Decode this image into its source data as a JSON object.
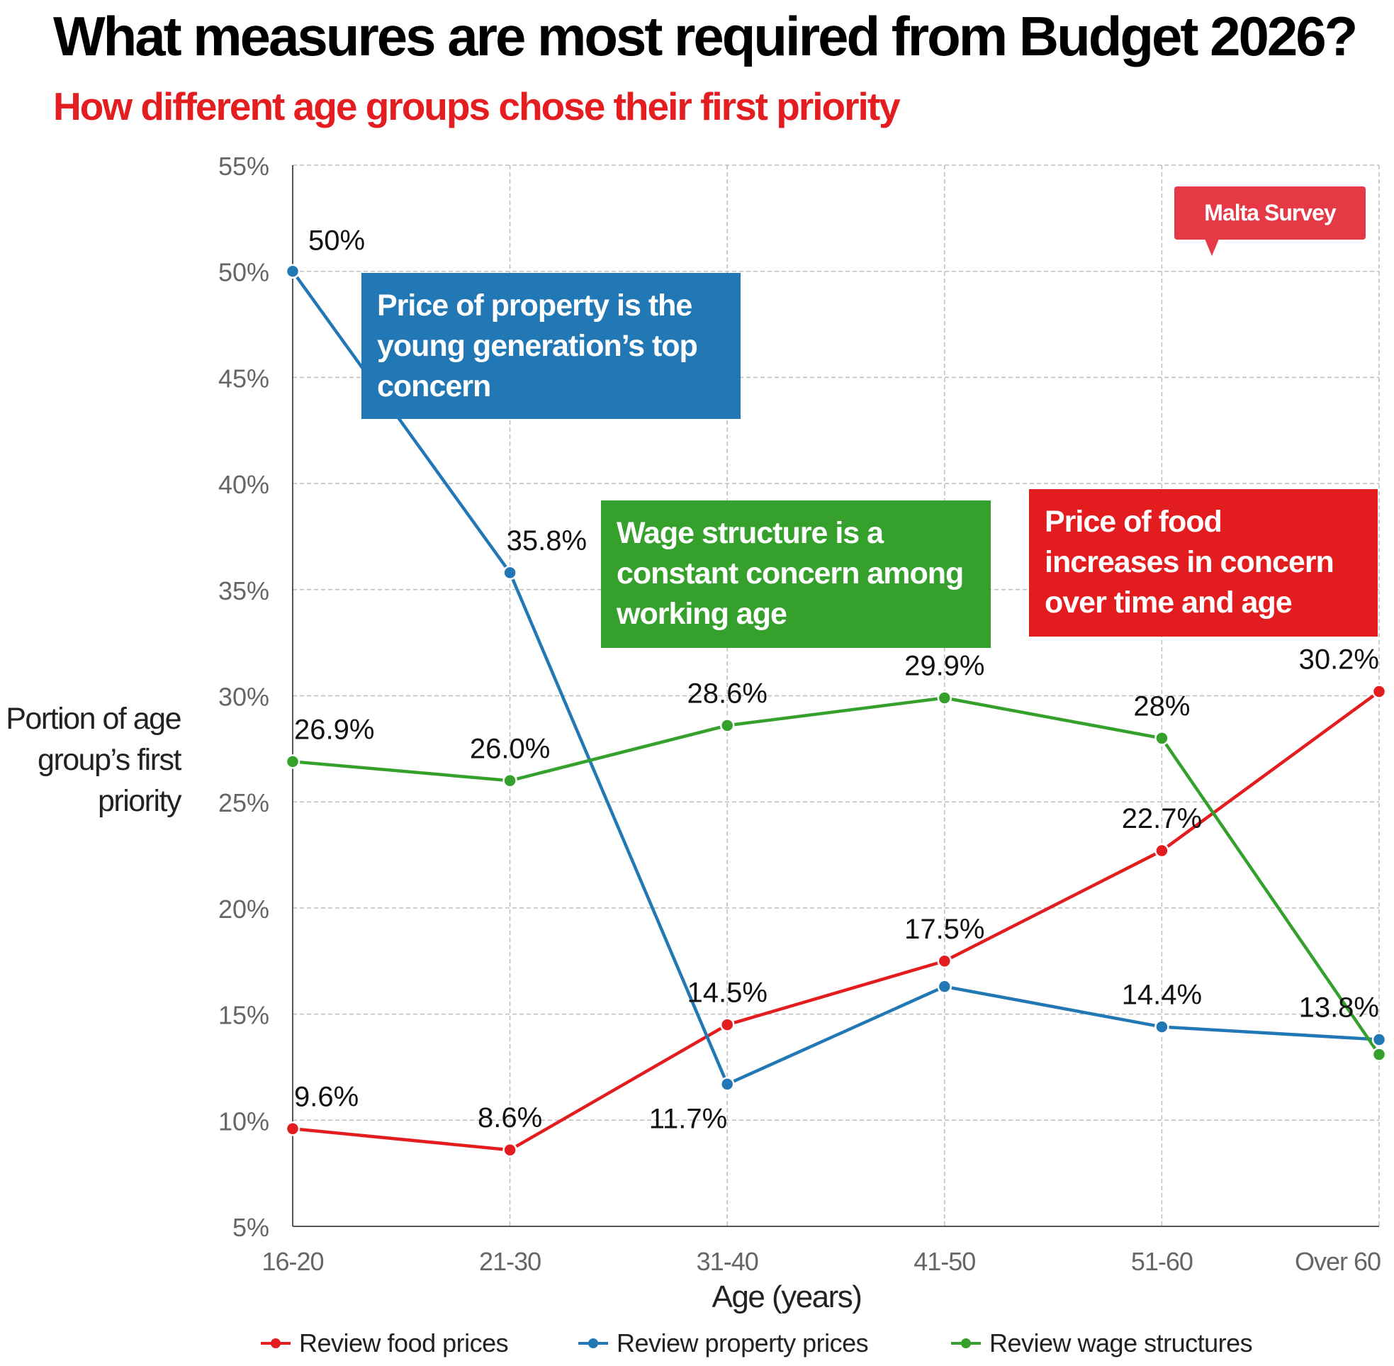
{
  "title": "What measures are most required from Budget 2026?",
  "subtitle": "How different age groups chose their first priority",
  "badge": "Malta Survey",
  "annotations": {
    "blue": "Price of property is the young generation’s top concern",
    "green": "Wage structure is a constant concern among working age",
    "red": "Price of food increases in concern over time and age"
  },
  "colors": {
    "food": "#e31c1f",
    "property": "#2277b5",
    "wage": "#35a02c",
    "badge": "#e63946"
  },
  "chart_data": {
    "type": "line",
    "title": "What measures are most required from Budget 2026?",
    "xlabel": "Age (years)",
    "ylabel": "Portion of age group’s first priority",
    "ylim": [
      5,
      55
    ],
    "yticks": [
      5,
      10,
      15,
      20,
      25,
      30,
      35,
      40,
      45,
      50,
      55
    ],
    "ytick_labels": [
      "5%",
      "10%",
      "15%",
      "20%",
      "25%",
      "30%",
      "35%",
      "40%",
      "45%",
      "50%",
      "55%"
    ],
    "categories": [
      "16-20",
      "21-30",
      "31-40",
      "41-50",
      "51-60",
      "Over 60"
    ],
    "grid": true,
    "legend": "bottom",
    "series": [
      {
        "name": "Review food prices",
        "key": "food",
        "values": [
          9.6,
          8.6,
          14.5,
          17.5,
          22.7,
          30.2
        ],
        "labels": [
          "9.6%",
          "8.6%",
          "14.5%",
          "17.5%",
          "22.7%",
          "30.2%"
        ]
      },
      {
        "name": "Review property prices",
        "key": "property",
        "values": [
          50,
          35.8,
          11.7,
          16.3,
          14.4,
          13.8
        ],
        "labels": [
          "50%",
          "35.8%",
          "11.7%",
          "",
          "14.4%",
          "13.8%"
        ]
      },
      {
        "name": "Review wage structures",
        "key": "wage",
        "values": [
          26.9,
          26.0,
          28.6,
          29.9,
          28,
          13.1
        ],
        "labels": [
          "26.9%",
          "26.0%",
          "28.6%",
          "29.9%",
          "28%",
          ""
        ]
      }
    ]
  }
}
